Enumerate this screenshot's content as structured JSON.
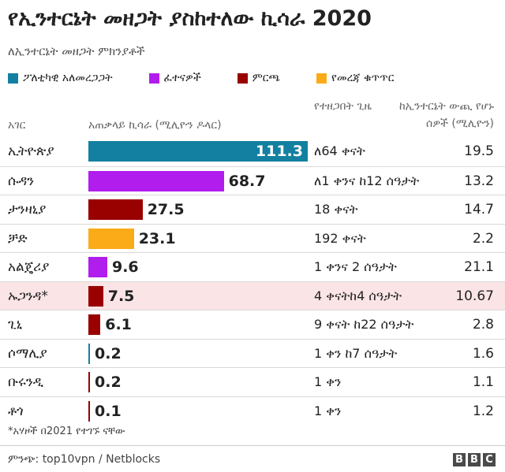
{
  "header": {
    "title": "የኢንተርኔት መዘጋት ያስከተለው ኪሳራ 2020",
    "subtitle": "ለኢንተርኔት መዘጋት ምክንያቶች"
  },
  "legend": [
    {
      "label": "ፖለቲካዊ አለመረጋጋት",
      "color": "#1380a1"
    },
    {
      "label": "ፈተናዎች",
      "color": "#b11ded"
    },
    {
      "label": "ምርጫ",
      "color": "#990000"
    },
    {
      "label": "የመረጃ ቁጥጥር",
      "color": "#fbab18"
    }
  ],
  "columns": {
    "country": "አገር",
    "total": "አጠቃላይ ኪሳራ (ሚሊዮን ዶላር)",
    "duration": "የተዘጋበት ጊዜ",
    "users": "ከኢንተርኔት ውጪ የሆኑ ሰዎች (ሚሊዮን)"
  },
  "chart_data": {
    "type": "bar",
    "title": "የኢንተርኔት መዘጋት ያስከተለው ኪሳራ 2020",
    "subtitle": "ለኢንተርኔት መዘጋት ምክንያቶች",
    "orientation": "horizontal",
    "value_label": "አጠቃላይ ኪሳራ (ሚሊዮን ዶላር)",
    "xlim": [
      0,
      111.3
    ],
    "grid": false,
    "categories": [
      "ኢትዮጵያ",
      "ሱዳን",
      "ታንዛኒያ",
      "ቻድ",
      "አልጄሪያ",
      "ኡጋንዳ*",
      "ጊኒ",
      "ሶማሊያ",
      "ቡሩንዲ",
      "ቶጎ"
    ],
    "values": [
      111.3,
      68.7,
      27.5,
      23.1,
      9.6,
      7.5,
      6.1,
      0.2,
      0.2,
      0.1
    ],
    "value_labels": [
      "111.3",
      "68.7",
      "27.5",
      "23.1",
      "9.6",
      "7.5",
      "6.1",
      "0.2",
      "0.2",
      "0.1"
    ],
    "reasons": [
      "ፖለቲካዊ አለመረጋጋት",
      "ፈተናዎች",
      "ምርጫ",
      "የመረጃ ቁጥጥር",
      "ፈተናዎች",
      "ምርጫ",
      "ምርጫ",
      "ፖለቲካዊ አለመረጋጋት",
      "ምርጫ",
      "ምርጫ"
    ],
    "durations": [
      "ለ64 ቀናት",
      "ለ1 ቀንና ከ12 ሰዓታት",
      "18 ቀናት",
      "192 ቀናት",
      "1 ቀንና 2 ሰዓታት",
      "4 ቀናትከ4 ሰዓታት",
      "9 ቀናት ከ22 ሰዓታት",
      "1 ቀን ከ7 ሰዓታት",
      "1 ቀን",
      "1 ቀን"
    ],
    "users_offline_millions": [
      "19.5",
      "13.2",
      "14.7",
      "2.2",
      "21.1",
      "10.67",
      "2.8",
      "1.6",
      "1.1",
      "1.2"
    ],
    "highlighted_row": "ኡጋንዳ*"
  },
  "footnote": "*አሃዞች በ2021 የተገኙ ናቸው",
  "source": "ምንጭ: top10vpn / Netblocks",
  "logo": [
    "B",
    "B",
    "C"
  ]
}
